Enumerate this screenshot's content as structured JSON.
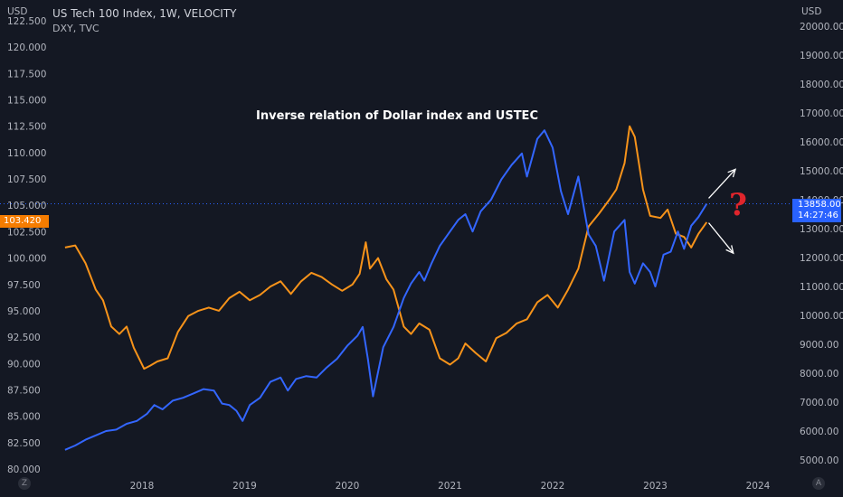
{
  "header": {
    "symbol_line": "US Tech 100 Index, 1W, VELOCITY",
    "compare_line": "DXY, TVC",
    "left_axis_unit": "USD",
    "right_axis_unit": "USD",
    "corner_left": "Z",
    "corner_right": "A"
  },
  "annotation": "Inverse relation of Dollar index and USTEC",
  "question_mark": "?",
  "price_labels": {
    "dxy_last": "103.420",
    "ustec_last": "13858.00",
    "ustec_countdown": "14:27:46"
  },
  "colors": {
    "dxy": "#f7931a",
    "ustec": "#3366ff",
    "dxy_badge": "#f57c00",
    "ustec_badge": "#2962ff",
    "background": "#141823",
    "question": "#e0252c"
  },
  "chart_data": {
    "type": "line",
    "x_ticks": [
      "2018",
      "2019",
      "2020",
      "2021",
      "2022",
      "2023",
      "2024"
    ],
    "left_axis": {
      "ticks": [
        "80.000",
        "82.500",
        "85.000",
        "87.500",
        "90.000",
        "92.500",
        "95.000",
        "97.500",
        "100.000",
        "102.500",
        "105.000",
        "107.500",
        "110.000",
        "112.500",
        "115.000",
        "117.500",
        "120.000",
        "122.500"
      ],
      "ylim": [
        80,
        122.5
      ]
    },
    "right_axis": {
      "ticks": [
        "5000.00",
        "6000.00",
        "7000.00",
        "8000.00",
        "9000.00",
        "10000.00",
        "11000.00",
        "12000.00",
        "13000.00",
        "14000.00",
        "15000.00",
        "16000.00",
        "17000.00",
        "18000.00",
        "19000.00",
        "20000.00"
      ],
      "ylim": [
        5000,
        20000
      ]
    },
    "series": [
      {
        "name": "DXY, TVC",
        "axis": "left",
        "color": "#f7931a",
        "x": [
          2017.25,
          2017.35,
          2017.45,
          2017.55,
          2017.62,
          2017.7,
          2017.78,
          2017.85,
          2017.92,
          2018.02,
          2018.08,
          2018.15,
          2018.25,
          2018.35,
          2018.45,
          2018.55,
          2018.65,
          2018.75,
          2018.85,
          2018.95,
          2019.05,
          2019.15,
          2019.25,
          2019.35,
          2019.45,
          2019.55,
          2019.65,
          2019.75,
          2019.85,
          2019.95,
          2020.05,
          2020.12,
          2020.18,
          2020.22,
          2020.3,
          2020.38,
          2020.45,
          2020.55,
          2020.62,
          2020.7,
          2020.8,
          2020.9,
          2021.0,
          2021.08,
          2021.15,
          2021.25,
          2021.35,
          2021.45,
          2021.55,
          2021.65,
          2021.75,
          2021.85,
          2021.95,
          2022.05,
          2022.15,
          2022.25,
          2022.35,
          2022.45,
          2022.55,
          2022.62,
          2022.7,
          2022.75,
          2022.8,
          2022.88,
          2022.95,
          2023.05,
          2023.12,
          2023.2,
          2023.28,
          2023.35,
          2023.42,
          2023.5
        ],
        "values": [
          101.0,
          101.2,
          99.5,
          97.0,
          96.0,
          93.5,
          92.8,
          93.5,
          91.5,
          89.5,
          89.8,
          90.2,
          90.5,
          93.0,
          94.5,
          95.0,
          95.3,
          95.0,
          96.2,
          96.8,
          96.0,
          96.5,
          97.3,
          97.8,
          96.6,
          97.8,
          98.6,
          98.2,
          97.5,
          96.9,
          97.5,
          98.5,
          101.5,
          99.0,
          100.0,
          98.0,
          97.0,
          93.5,
          92.8,
          93.8,
          93.2,
          90.5,
          89.9,
          90.5,
          91.9,
          91.0,
          90.2,
          92.4,
          92.9,
          93.8,
          94.2,
          95.8,
          96.5,
          95.3,
          97.0,
          99.0,
          103.0,
          104.2,
          105.5,
          106.5,
          109.0,
          112.5,
          111.5,
          106.5,
          104.0,
          103.8,
          104.6,
          102.3,
          102.0,
          101.0,
          102.3,
          103.4
        ]
      },
      {
        "name": "US Tech 100 Index",
        "axis": "right",
        "color": "#3366ff",
        "x": [
          2017.25,
          2017.35,
          2017.45,
          2017.55,
          2017.65,
          2017.75,
          2017.85,
          2017.95,
          2018.05,
          2018.12,
          2018.2,
          2018.3,
          2018.4,
          2018.5,
          2018.6,
          2018.7,
          2018.78,
          2018.85,
          2018.92,
          2018.98,
          2019.05,
          2019.15,
          2019.25,
          2019.35,
          2019.42,
          2019.5,
          2019.6,
          2019.7,
          2019.8,
          2019.9,
          2020.0,
          2020.1,
          2020.15,
          2020.2,
          2020.25,
          2020.35,
          2020.45,
          2020.55,
          2020.62,
          2020.7,
          2020.75,
          2020.82,
          2020.9,
          2021.0,
          2021.08,
          2021.15,
          2021.22,
          2021.3,
          2021.4,
          2021.5,
          2021.6,
          2021.7,
          2021.75,
          2021.85,
          2021.92,
          2022.0,
          2022.08,
          2022.15,
          2022.25,
          2022.35,
          2022.42,
          2022.5,
          2022.6,
          2022.7,
          2022.75,
          2022.8,
          2022.88,
          2022.95,
          2023.0,
          2023.08,
          2023.15,
          2023.22,
          2023.28,
          2023.35,
          2023.42,
          2023.5
        ],
        "values": [
          5350,
          5500,
          5700,
          5850,
          6000,
          6050,
          6250,
          6350,
          6600,
          6900,
          6750,
          7050,
          7150,
          7300,
          7450,
          7400,
          6950,
          6900,
          6700,
          6350,
          6900,
          7150,
          7700,
          7850,
          7400,
          7800,
          7900,
          7850,
          8200,
          8500,
          8950,
          9300,
          9600,
          8500,
          7200,
          8900,
          9600,
          10600,
          11100,
          11500,
          11200,
          11800,
          12400,
          12900,
          13300,
          13500,
          12900,
          13600,
          14000,
          14700,
          15200,
          15600,
          14800,
          16100,
          16400,
          15800,
          14300,
          13500,
          14800,
          12800,
          12400,
          11200,
          12900,
          13300,
          11500,
          11100,
          11800,
          11500,
          11000,
          12100,
          12200,
          12900,
          12300,
          13100,
          13400,
          13858
        ]
      }
    ],
    "reference_line": {
      "axis": "right",
      "value": 13858
    },
    "arrows": [
      {
        "from": [
          2023.52,
          14050
        ],
        "to": [
          2023.78,
          15050
        ]
      },
      {
        "from": [
          2023.52,
          13200
        ],
        "to": [
          2023.76,
          12150
        ]
      }
    ]
  }
}
